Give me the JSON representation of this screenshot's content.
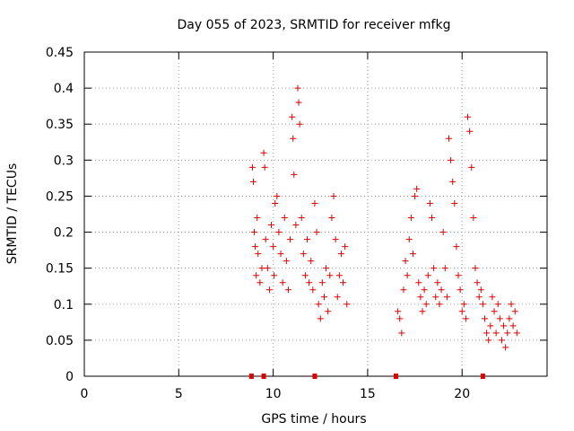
{
  "chart_data": {
    "type": "scatter",
    "title": "Day 055 of 2023, SRMTID for receiver mfkg",
    "xlabel": "GPS time / hours",
    "ylabel": "SRMTID / TECUs",
    "xlim": [
      0,
      24.5
    ],
    "ylim": [
      0,
      0.45
    ],
    "xticks": [
      0,
      5,
      10,
      15,
      20
    ],
    "yticks": [
      0,
      0.05,
      0.1,
      0.15,
      0.2,
      0.25,
      0.3,
      0.35,
      0.4,
      0.45
    ],
    "xtick_labels": [
      "0",
      "5",
      "10",
      "15",
      "20"
    ],
    "ytick_labels": [
      "0",
      "0.05",
      "0.1",
      "0.15",
      "0.2",
      "0.25",
      "0.3",
      "0.35",
      "0.4",
      "0.45"
    ],
    "grid": true,
    "marker": "+",
    "color": "#e00000",
    "series": [
      {
        "name": "SRMTID",
        "x": [
          8.9,
          8.95,
          9.0,
          9.05,
          9.1,
          9.15,
          9.2,
          9.3,
          9.4,
          9.5,
          9.55,
          9.6,
          9.7,
          9.8,
          9.9,
          10.0,
          10.05,
          10.1,
          10.2,
          10.3,
          10.4,
          10.5,
          10.6,
          10.7,
          10.8,
          10.9,
          11.0,
          11.05,
          11.1,
          11.2,
          11.3,
          11.35,
          11.4,
          11.5,
          11.6,
          11.7,
          11.8,
          11.9,
          12.0,
          12.1,
          12.2,
          12.3,
          12.4,
          12.5,
          12.6,
          12.7,
          12.8,
          12.9,
          13.0,
          13.1,
          13.2,
          13.3,
          13.4,
          13.5,
          13.6,
          13.7,
          13.8,
          13.9,
          16.6,
          16.7,
          16.8,
          16.9,
          17.0,
          17.1,
          17.2,
          17.3,
          17.4,
          17.5,
          17.6,
          17.7,
          17.8,
          17.9,
          18.0,
          18.1,
          18.2,
          18.3,
          18.4,
          18.5,
          18.6,
          18.7,
          18.8,
          18.9,
          19.0,
          19.1,
          19.2,
          19.3,
          19.4,
          19.5,
          19.6,
          19.7,
          19.8,
          19.9,
          20.0,
          20.1,
          20.2,
          20.3,
          20.4,
          20.5,
          20.6,
          20.7,
          20.8,
          20.9,
          21.0,
          21.1,
          21.2,
          21.3,
          21.4,
          21.5,
          21.6,
          21.7,
          21.8,
          21.9,
          22.0,
          22.1,
          22.2,
          22.3,
          22.4,
          22.5,
          22.6,
          22.7,
          22.8,
          22.9
        ],
        "y": [
          0.29,
          0.27,
          0.2,
          0.18,
          0.14,
          0.22,
          0.17,
          0.13,
          0.15,
          0.31,
          0.29,
          0.19,
          0.15,
          0.12,
          0.21,
          0.18,
          0.14,
          0.24,
          0.25,
          0.2,
          0.17,
          0.13,
          0.22,
          0.16,
          0.12,
          0.19,
          0.36,
          0.33,
          0.28,
          0.21,
          0.4,
          0.38,
          0.35,
          0.22,
          0.17,
          0.14,
          0.19,
          0.13,
          0.16,
          0.12,
          0.24,
          0.2,
          0.1,
          0.08,
          0.13,
          0.11,
          0.15,
          0.09,
          0.14,
          0.22,
          0.25,
          0.19,
          0.11,
          0.14,
          0.17,
          0.13,
          0.18,
          0.1,
          0.09,
          0.08,
          0.06,
          0.12,
          0.16,
          0.14,
          0.19,
          0.22,
          0.17,
          0.25,
          0.26,
          0.13,
          0.11,
          0.09,
          0.12,
          0.1,
          0.14,
          0.24,
          0.22,
          0.15,
          0.11,
          0.13,
          0.1,
          0.12,
          0.2,
          0.15,
          0.11,
          0.33,
          0.3,
          0.27,
          0.24,
          0.18,
          0.14,
          0.12,
          0.09,
          0.1,
          0.08,
          0.36,
          0.34,
          0.29,
          0.22,
          0.15,
          0.13,
          0.11,
          0.12,
          0.1,
          0.08,
          0.06,
          0.05,
          0.07,
          0.11,
          0.09,
          0.06,
          0.1,
          0.08,
          0.05,
          0.07,
          0.04,
          0.06,
          0.08,
          0.1,
          0.07,
          0.09,
          0.06
        ]
      }
    ],
    "axis_markers_x": [
      8.85,
      9.5,
      12.2,
      16.5,
      21.1
    ]
  }
}
